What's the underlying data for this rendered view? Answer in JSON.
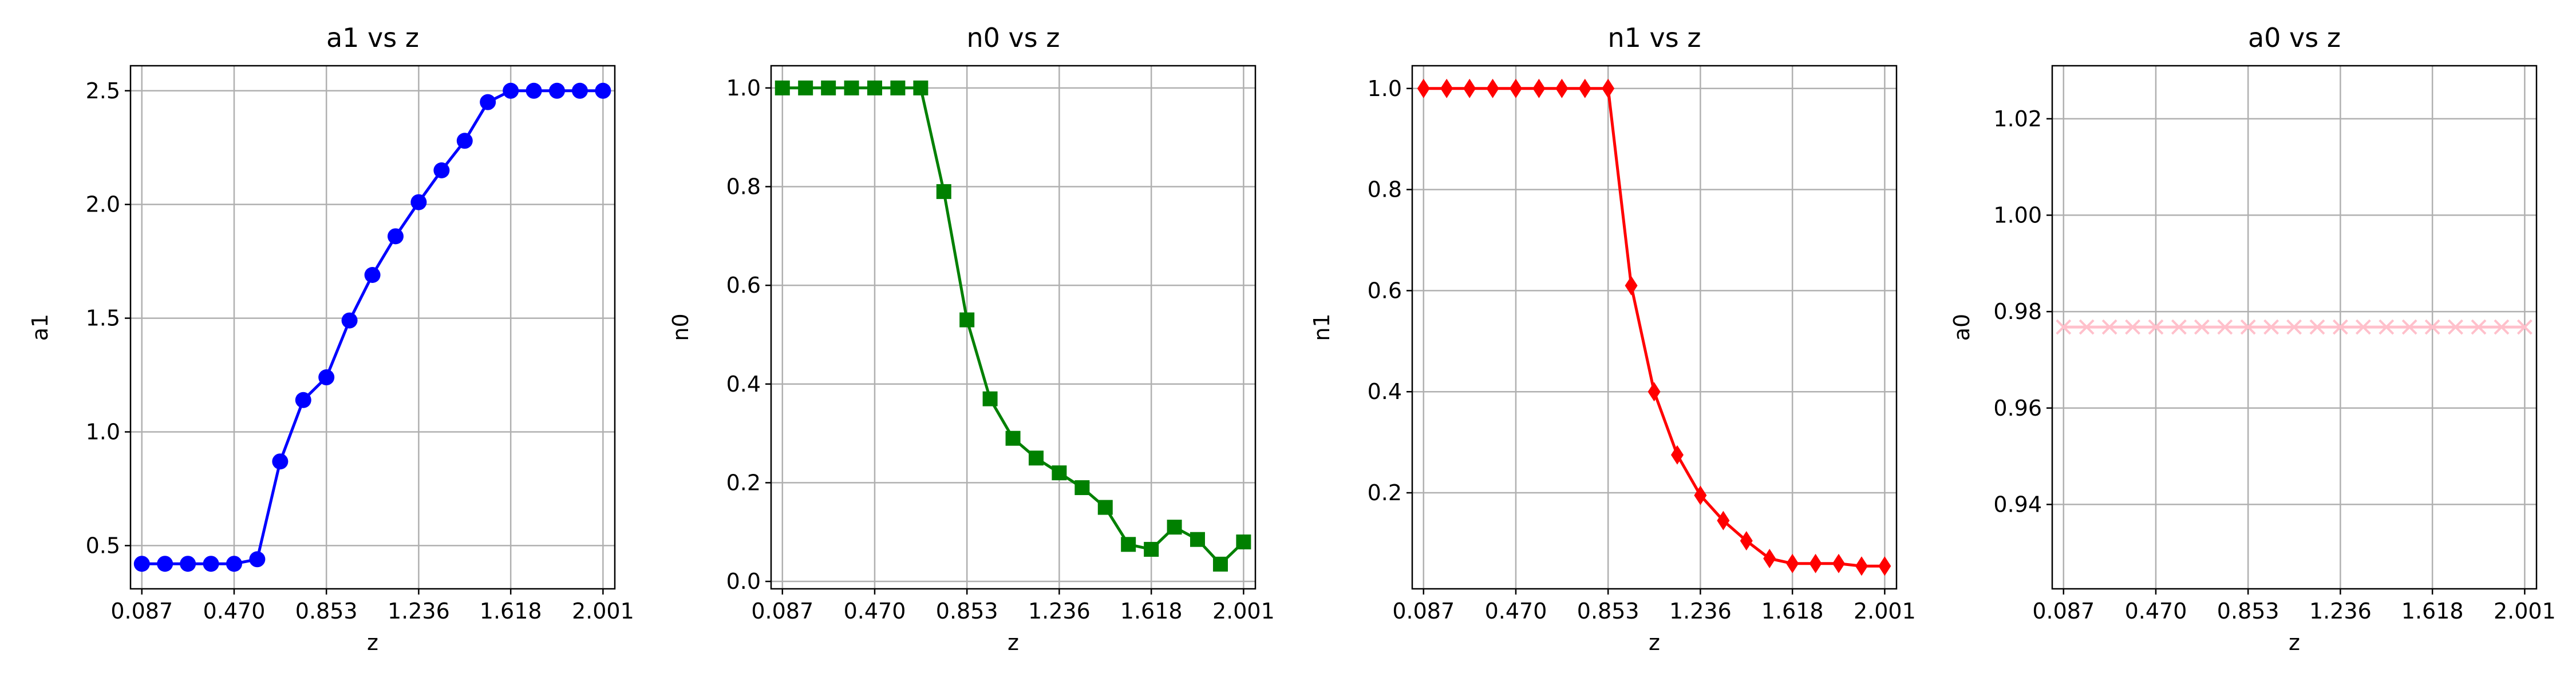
{
  "colors": {
    "a1": "#0000ff",
    "n0": "#008000",
    "n1": "#ff0000",
    "a0": "#ffc0cb"
  },
  "chart_data": [
    {
      "type": "line",
      "title": "a1 vs z",
      "xlabel": "z",
      "ylabel": "a1",
      "marker": "circle",
      "color": "#0000ff",
      "xlim": [
        0.04,
        2.05
      ],
      "ylim": [
        0.31,
        2.61
      ],
      "xticks": [
        0.087,
        0.47,
        0.853,
        1.236,
        1.618,
        2.001
      ],
      "xticklabels": [
        "0.087",
        "0.470",
        "0.853",
        "1.236",
        "1.618",
        "2.001"
      ],
      "yticks": [
        0.5,
        1.0,
        1.5,
        2.0,
        2.5
      ],
      "yticklabels": [
        "0.5",
        "1.0",
        "1.5",
        "2.0",
        "2.5"
      ],
      "x": [
        0.087,
        0.183,
        0.278,
        0.374,
        0.47,
        0.566,
        0.661,
        0.757,
        0.853,
        0.949,
        1.044,
        1.14,
        1.236,
        1.331,
        1.427,
        1.523,
        1.618,
        1.714,
        1.81,
        1.905,
        2.001
      ],
      "y": [
        0.42,
        0.42,
        0.42,
        0.42,
        0.42,
        0.44,
        0.87,
        1.14,
        1.24,
        1.49,
        1.69,
        1.86,
        2.01,
        2.15,
        2.28,
        2.45,
        2.5,
        2.5,
        2.5,
        2.5,
        2.5
      ]
    },
    {
      "type": "line",
      "title": "n0 vs z",
      "xlabel": "z",
      "ylabel": "n0",
      "marker": "square",
      "color": "#008000",
      "xlim": [
        0.04,
        2.05
      ],
      "ylim": [
        -0.015,
        1.045
      ],
      "xticks": [
        0.087,
        0.47,
        0.853,
        1.236,
        1.618,
        2.001
      ],
      "xticklabels": [
        "0.087",
        "0.470",
        "0.853",
        "1.236",
        "1.618",
        "2.001"
      ],
      "yticks": [
        0.0,
        0.2,
        0.4,
        0.6,
        0.8,
        1.0
      ],
      "yticklabels": [
        "0.0",
        "0.2",
        "0.4",
        "0.6",
        "0.8",
        "1.0"
      ],
      "x": [
        0.087,
        0.183,
        0.278,
        0.374,
        0.47,
        0.566,
        0.661,
        0.757,
        0.853,
        0.949,
        1.044,
        1.14,
        1.236,
        1.331,
        1.427,
        1.523,
        1.618,
        1.714,
        1.81,
        1.905,
        2.001
      ],
      "y": [
        1.0,
        1.0,
        1.0,
        1.0,
        1.0,
        1.0,
        1.0,
        0.79,
        0.53,
        0.37,
        0.29,
        0.25,
        0.22,
        0.19,
        0.15,
        0.075,
        0.065,
        0.11,
        0.085,
        0.035,
        0.08
      ]
    },
    {
      "type": "line",
      "title": "n1 vs z",
      "xlabel": "z",
      "ylabel": "n1",
      "marker": "diamond",
      "color": "#ff0000",
      "xlim": [
        0.04,
        2.05
      ],
      "ylim": [
        0.01,
        1.045
      ],
      "xticks": [
        0.087,
        0.47,
        0.853,
        1.236,
        1.618,
        2.001
      ],
      "xticklabels": [
        "0.087",
        "0.470",
        "0.853",
        "1.236",
        "1.618",
        "2.001"
      ],
      "yticks": [
        0.2,
        0.4,
        0.6,
        0.8,
        1.0
      ],
      "yticklabels": [
        "0.2",
        "0.4",
        "0.6",
        "0.8",
        "1.0"
      ],
      "x": [
        0.087,
        0.183,
        0.278,
        0.374,
        0.47,
        0.566,
        0.661,
        0.757,
        0.853,
        0.949,
        1.044,
        1.14,
        1.236,
        1.331,
        1.427,
        1.523,
        1.618,
        1.714,
        1.81,
        1.905,
        2.001
      ],
      "y": [
        1.0,
        1.0,
        1.0,
        1.0,
        1.0,
        1.0,
        1.0,
        1.0,
        1.0,
        0.61,
        0.4,
        0.275,
        0.195,
        0.145,
        0.105,
        0.07,
        0.06,
        0.06,
        0.06,
        0.055,
        0.055
      ]
    },
    {
      "type": "line",
      "title": "a0 vs z",
      "xlabel": "z",
      "ylabel": "a0",
      "marker": "x",
      "color": "#ffc0cb",
      "xlim": [
        0.04,
        2.05
      ],
      "ylim": [
        0.9225,
        1.031
      ],
      "xticks": [
        0.087,
        0.47,
        0.853,
        1.236,
        1.618,
        2.001
      ],
      "xticklabels": [
        "0.087",
        "0.470",
        "0.853",
        "1.236",
        "1.618",
        "2.001"
      ],
      "yticks": [
        0.94,
        0.96,
        0.98,
        1.0,
        1.02
      ],
      "yticklabels": [
        "0.94",
        "0.96",
        "0.98",
        "1.00",
        "1.02"
      ],
      "x": [
        0.087,
        0.183,
        0.278,
        0.374,
        0.47,
        0.566,
        0.661,
        0.757,
        0.853,
        0.949,
        1.044,
        1.14,
        1.236,
        1.331,
        1.427,
        1.523,
        1.618,
        1.714,
        1.81,
        1.905,
        2.001
      ],
      "y": [
        0.9768,
        0.9768,
        0.9768,
        0.9768,
        0.9768,
        0.9768,
        0.9768,
        0.9768,
        0.9768,
        0.9768,
        0.9768,
        0.9768,
        0.9768,
        0.9768,
        0.9768,
        0.9768,
        0.9768,
        0.9768,
        0.9768,
        0.9768,
        0.9768
      ]
    }
  ]
}
